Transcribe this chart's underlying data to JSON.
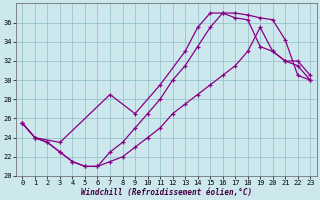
{
  "xlabel": "Windchill (Refroidissement éolien,°C)",
  "xlim": [
    -0.5,
    23.5
  ],
  "ylim": [
    20,
    38
  ],
  "yticks": [
    20,
    22,
    24,
    26,
    28,
    30,
    32,
    34,
    36
  ],
  "xticks": [
    0,
    1,
    2,
    3,
    4,
    5,
    6,
    7,
    8,
    9,
    10,
    11,
    12,
    13,
    14,
    15,
    16,
    17,
    18,
    19,
    20,
    21,
    22,
    23
  ],
  "bg_color": "#cce8ec",
  "line_color": "#880088",
  "grid_color": "#99c4cc",
  "line1_x": [
    0,
    1,
    2,
    3,
    4,
    5,
    6,
    7,
    8,
    9,
    10,
    11,
    12,
    13,
    14,
    15,
    16,
    17,
    18,
    19,
    20,
    21,
    22,
    23
  ],
  "line1_y": [
    25.5,
    24.0,
    23.5,
    22.5,
    21.5,
    21.0,
    21.0,
    22.5,
    23.5,
    25.0,
    26.5,
    28.0,
    30.0,
    31.5,
    33.5,
    35.5,
    37.0,
    37.0,
    36.8,
    36.5,
    36.3,
    34.2,
    30.5,
    30.0
  ],
  "line2_x": [
    0,
    1,
    3,
    7,
    9,
    11,
    13,
    14,
    15,
    16,
    17,
    18,
    19,
    20,
    21,
    22,
    23
  ],
  "line2_y": [
    25.5,
    24.0,
    23.5,
    28.5,
    26.5,
    29.5,
    33.0,
    35.5,
    37.0,
    37.0,
    36.5,
    36.3,
    33.5,
    33.0,
    32.0,
    31.5,
    30.0
  ],
  "line3_x": [
    0,
    1,
    2,
    3,
    4,
    5,
    6,
    7,
    8,
    9,
    10,
    11,
    12,
    13,
    14,
    15,
    16,
    17,
    18,
    19,
    20,
    21,
    22,
    23
  ],
  "line3_y": [
    25.5,
    24.0,
    23.5,
    22.5,
    21.5,
    21.0,
    21.0,
    21.5,
    22.0,
    23.0,
    24.0,
    25.0,
    26.5,
    27.5,
    28.5,
    29.5,
    30.5,
    31.5,
    33.0,
    35.5,
    33.0,
    32.0,
    32.0,
    30.5
  ]
}
